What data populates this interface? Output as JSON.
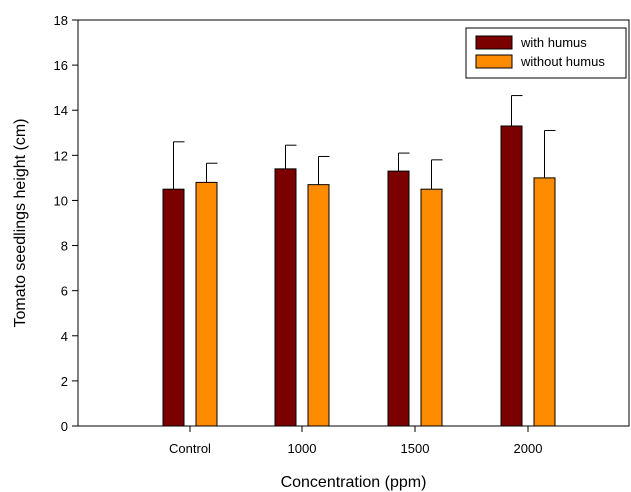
{
  "chart_data": {
    "type": "bar",
    "xlabel": "Concentration (ppm)",
    "ylabel": "Tomato seedlings height (cm)",
    "ylim": [
      0,
      18
    ],
    "yticks": [
      "0",
      "2",
      "4",
      "6",
      "8",
      "10",
      "12",
      "14",
      "16",
      "18"
    ],
    "categories": [
      "Control",
      "1000",
      "1500",
      "2000"
    ],
    "series": [
      {
        "name": "with humus",
        "color": "#7b0000",
        "values": [
          10.5,
          11.4,
          11.3,
          13.3
        ],
        "errors": [
          2.1,
          1.05,
          0.8,
          1.35
        ]
      },
      {
        "name": "without humus",
        "color": "#ff8c00",
        "values": [
          10.8,
          10.7,
          10.5,
          11.0
        ],
        "errors": [
          0.85,
          1.25,
          1.3,
          2.1
        ]
      }
    ],
    "grid": false,
    "legend_position": "top-right"
  }
}
